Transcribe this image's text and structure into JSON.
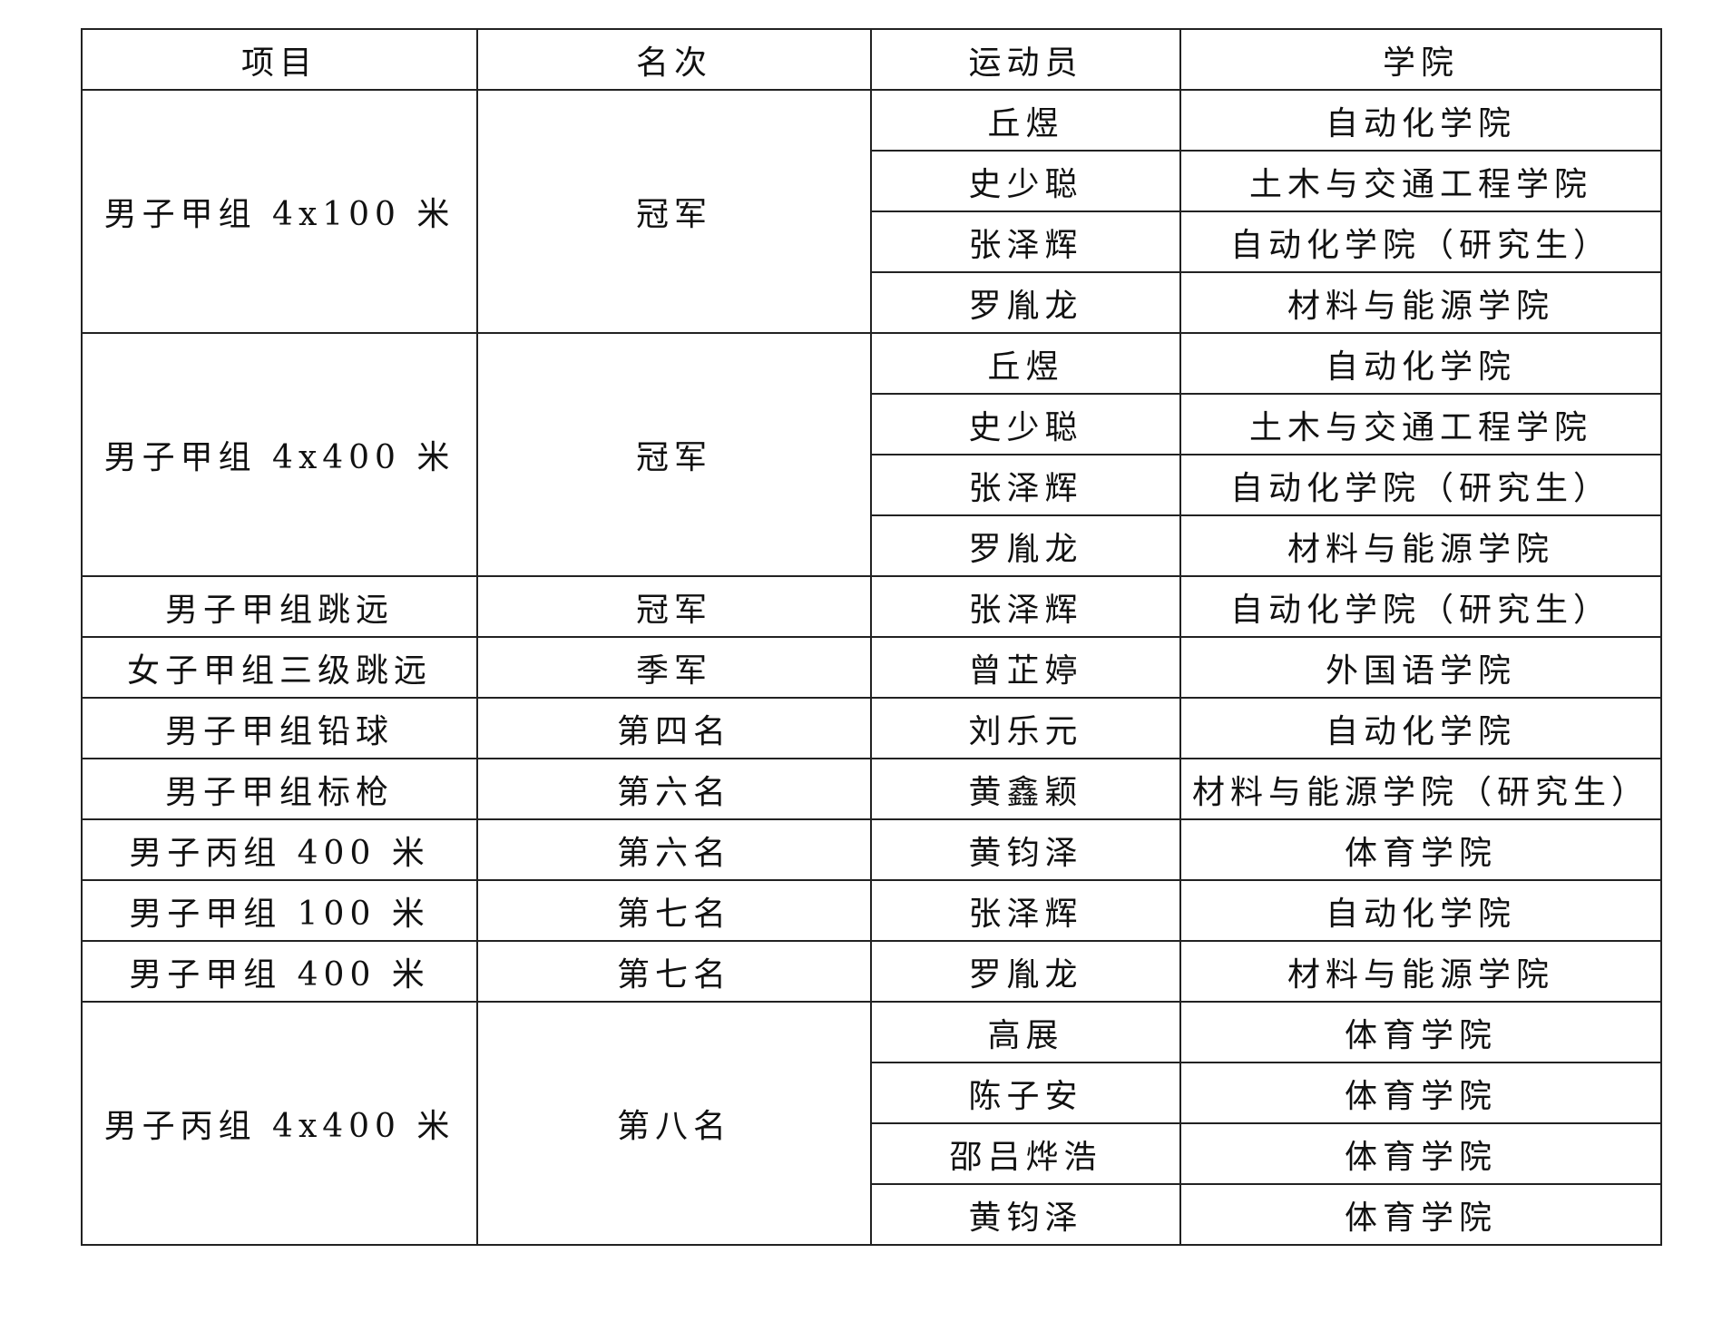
{
  "headers": [
    "项目",
    "名次",
    "运动员",
    "学院"
  ],
  "groups": [
    {
      "event": "男子甲组 4x100 米",
      "rank": "冠军",
      "members": [
        {
          "athlete": "丘煜",
          "college": "自动化学院"
        },
        {
          "athlete": "史少聪",
          "college": "土木与交通工程学院"
        },
        {
          "athlete": "张泽辉",
          "college": "自动化学院（研究生）"
        },
        {
          "athlete": "罗胤龙",
          "college": "材料与能源学院"
        }
      ]
    },
    {
      "event": "男子甲组 4x400 米",
      "rank": "冠军",
      "members": [
        {
          "athlete": "丘煜",
          "college": "自动化学院"
        },
        {
          "athlete": "史少聪",
          "college": "土木与交通工程学院"
        },
        {
          "athlete": "张泽辉",
          "college": "自动化学院（研究生）"
        },
        {
          "athlete": "罗胤龙",
          "college": "材料与能源学院"
        }
      ]
    },
    {
      "event": "男子甲组跳远",
      "rank": "冠军",
      "members": [
        {
          "athlete": "张泽辉",
          "college": "自动化学院（研究生）"
        }
      ]
    },
    {
      "event": "女子甲组三级跳远",
      "rank": "季军",
      "members": [
        {
          "athlete": "曾芷婷",
          "college": "外国语学院"
        }
      ]
    },
    {
      "event": "男子甲组铅球",
      "rank": "第四名",
      "members": [
        {
          "athlete": "刘乐元",
          "college": "自动化学院"
        }
      ]
    },
    {
      "event": "男子甲组标枪",
      "rank": "第六名",
      "members": [
        {
          "athlete": "黄鑫颖",
          "college": "材料与能源学院（研究生）"
        }
      ]
    },
    {
      "event": "男子丙组 400 米",
      "rank": "第六名",
      "members": [
        {
          "athlete": "黄钧泽",
          "college": "体育学院"
        }
      ]
    },
    {
      "event": "男子甲组 100 米",
      "rank": "第七名",
      "members": [
        {
          "athlete": "张泽辉",
          "college": "自动化学院"
        }
      ]
    },
    {
      "event": "男子甲组 400 米",
      "rank": "第七名",
      "members": [
        {
          "athlete": "罗胤龙",
          "college": "材料与能源学院"
        }
      ]
    },
    {
      "event": "男子丙组 4x400 米",
      "rank": "第八名",
      "members": [
        {
          "athlete": "高展",
          "college": "体育学院"
        },
        {
          "athlete": "陈子安",
          "college": "体育学院"
        },
        {
          "athlete": "邵吕烨浩",
          "college": "体育学院"
        },
        {
          "athlete": "黄钧泽",
          "college": "体育学院"
        }
      ]
    }
  ]
}
